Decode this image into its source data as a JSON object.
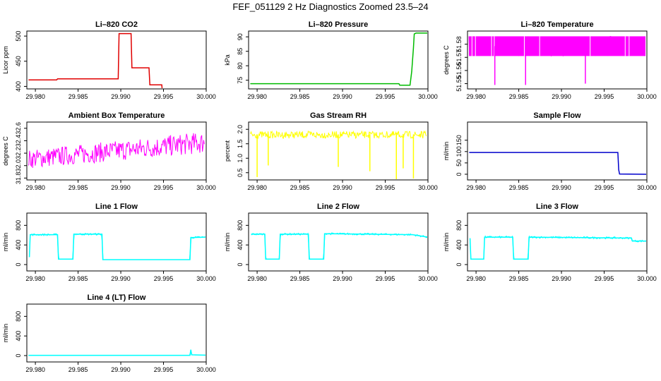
{
  "figure": {
    "title": "FEF_051129  2 Hz Diagnostics Zoomed 23.5–24"
  },
  "chart_data": [
    {
      "type": "line",
      "title": "Li–820 CO2",
      "xlabel": "",
      "ylabel": "Licor ppm",
      "color": "#e00000",
      "xlim": [
        29.979,
        30.0
      ],
      "ylim": [
        395,
        510
      ],
      "xticks": [
        "29.980",
        "29.985",
        "29.990",
        "29.995",
        "30.000"
      ],
      "yticks": [
        "400",
        "450",
        "500"
      ],
      "series": [
        {
          "x": [
            29.9792,
            29.9825,
            29.9826,
            29.9897,
            29.9898,
            29.9912,
            29.9913,
            29.9933,
            29.9934,
            29.9948,
            29.9949,
            29.9983,
            29.9984,
            30.0
          ],
          "y": [
            413,
            413,
            415,
            415,
            505,
            505,
            437,
            437,
            403,
            403,
            383,
            383,
            376,
            376
          ]
        }
      ]
    },
    {
      "type": "line",
      "title": "Li–820 Pressure",
      "xlabel": "",
      "ylabel": "kPa",
      "color": "#00bb00",
      "xlim": [
        29.979,
        30.0
      ],
      "ylim": [
        72,
        92
      ],
      "xticks": [
        "29.980",
        "29.985",
        "29.990",
        "29.995",
        "30.000"
      ],
      "yticks": [
        "75",
        "80",
        "85",
        "90"
      ],
      "series": [
        {
          "x": [
            29.9792,
            29.9966,
            29.9967,
            29.9979,
            29.9981,
            29.9983,
            29.9984,
            29.9986,
            30.0
          ],
          "y": [
            73.8,
            73.8,
            73.3,
            73.3,
            78,
            86,
            91,
            91.3,
            91.3
          ]
        }
      ]
    },
    {
      "type": "line",
      "title": "Li–820 Temperature",
      "xlabel": "",
      "ylabel": "degrees C",
      "color": "#ff00ff",
      "xlim": [
        29.979,
        30.0
      ],
      "ylim": [
        51.546,
        51.59
      ],
      "xticks": [
        "29.980",
        "29.985",
        "29.990",
        "29.995",
        "30.000"
      ],
      "yticks": [
        "51.55",
        "51.56",
        "51.57",
        "51.58"
      ],
      "band": {
        "low": 51.571,
        "high": 51.586
      },
      "spikes": [
        {
          "x": 29.9822,
          "y": 51.549
        },
        {
          "x": 29.9858,
          "y": 51.549
        },
        {
          "x": 29.9928,
          "y": 51.55
        }
      ]
    },
    {
      "type": "line",
      "title": "Ambient Box Temperature",
      "xlabel": "",
      "ylabel": "degrees C",
      "color": "#ff00ff",
      "xlim": [
        29.979,
        30.0
      ],
      "ylim": [
        31.77,
        32.7
      ],
      "xticks": [
        "29.980",
        "29.985",
        "29.990",
        "29.995",
        "30.000"
      ],
      "yticks": [
        "31.8",
        "32.0",
        "32.2",
        "32.4",
        "32.6"
      ],
      "trend": {
        "low_start": 31.95,
        "high_start": 32.25,
        "low_end": 32.2,
        "high_end": 32.55
      }
    },
    {
      "type": "line",
      "title": "Gas Stream RH",
      "xlabel": "",
      "ylabel": "percent",
      "color": "#ffff00",
      "xlim": [
        29.979,
        30.0
      ],
      "ylim": [
        0.25,
        2.25
      ],
      "xticks": [
        "29.980",
        "29.985",
        "29.990",
        "29.995",
        "30.000"
      ],
      "yticks": [
        "0.5",
        "1.0",
        "1.5",
        "2.0"
      ],
      "band": {
        "low": 1.65,
        "high": 2.0
      },
      "spikes": [
        {
          "x": 29.98,
          "y": 0.35
        },
        {
          "x": 29.9813,
          "y": 0.75
        },
        {
          "x": 29.9895,
          "y": 0.7
        },
        {
          "x": 29.9932,
          "y": 0.55
        },
        {
          "x": 29.9963,
          "y": 0.25
        },
        {
          "x": 29.9971,
          "y": 0.65
        },
        {
          "x": 29.9983,
          "y": 0.3
        }
      ]
    },
    {
      "type": "line",
      "title": "Sample Flow",
      "xlabel": "",
      "ylabel": "ml/min",
      "color": "#0000cc",
      "xlim": [
        29.979,
        30.0
      ],
      "ylim": [
        -25,
        230
      ],
      "xticks": [
        "29.980",
        "29.985",
        "29.990",
        "29.995",
        "30.000"
      ],
      "yticks": [
        "0",
        "50",
        "100",
        "150"
      ],
      "series": [
        {
          "x": [
            29.9792,
            29.9966,
            29.9967,
            29.9968,
            30.0
          ],
          "y": [
            96,
            96,
            20,
            1,
            0
          ]
        }
      ]
    },
    {
      "type": "line",
      "title": "Line 1 Flow",
      "xlabel": "",
      "ylabel": "ml/min",
      "color": "#00ffff",
      "xlim": [
        29.979,
        30.0
      ],
      "ylim": [
        -130,
        1050
      ],
      "xticks": [
        "29.980",
        "29.985",
        "29.990",
        "29.995",
        "30.000"
      ],
      "yticks": [
        "0",
        "400",
        "800"
      ],
      "series": [
        {
          "x": [
            29.9793,
            29.9794,
            29.9826,
            29.9827,
            29.9844,
            29.9845,
            29.9878,
            29.9879,
            29.9981,
            29.9982,
            30.0
          ],
          "y": [
            150,
            610,
            610,
            110,
            110,
            620,
            620,
            100,
            100,
            550,
            560
          ]
        }
      ]
    },
    {
      "type": "line",
      "title": "Line 2 Flow",
      "xlabel": "",
      "ylabel": "ml/min",
      "color": "#00ffff",
      "xlim": [
        29.979,
        30.0
      ],
      "ylim": [
        -130,
        1050
      ],
      "xticks": [
        "29.980",
        "29.985",
        "29.990",
        "29.995",
        "30.000"
      ],
      "yticks": [
        "0",
        "400",
        "800"
      ],
      "series": [
        {
          "x": [
            29.9793,
            29.9809,
            29.981,
            29.9826,
            29.9827,
            29.986,
            29.9861,
            29.9878,
            29.9879,
            29.9982,
            30.0
          ],
          "y": [
            620,
            620,
            110,
            110,
            620,
            620,
            110,
            110,
            630,
            610,
            560
          ]
        }
      ]
    },
    {
      "type": "line",
      "title": "Line 3 Flow",
      "xlabel": "",
      "ylabel": "ml/min",
      "color": "#00ffff",
      "xlim": [
        29.979,
        30.0
      ],
      "ylim": [
        -130,
        1050
      ],
      "xticks": [
        "29.980",
        "29.985",
        "29.990",
        "29.995",
        "30.000"
      ],
      "yticks": [
        "0",
        "400",
        "800"
      ],
      "series": [
        {
          "x": [
            29.9793,
            29.9794,
            29.9809,
            29.981,
            29.9843,
            29.9844,
            29.9861,
            29.9862,
            29.9982,
            29.9983,
            30.0
          ],
          "y": [
            530,
            110,
            110,
            560,
            560,
            110,
            110,
            560,
            540,
            480,
            480
          ]
        }
      ]
    },
    {
      "type": "line",
      "title": "Line 4 (LT) Flow",
      "xlabel": "",
      "ylabel": "ml/min",
      "color": "#00ffff",
      "xlim": [
        29.979,
        30.0
      ],
      "ylim": [
        -130,
        1050
      ],
      "xticks": [
        "29.980",
        "29.985",
        "29.990",
        "29.995",
        "30.000"
      ],
      "yticks": [
        "0",
        "400",
        "800"
      ],
      "series": [
        {
          "x": [
            29.9792,
            29.9981,
            29.9982,
            29.9983,
            30.0
          ],
          "y": [
            5,
            5,
            120,
            15,
            8
          ]
        }
      ]
    }
  ]
}
